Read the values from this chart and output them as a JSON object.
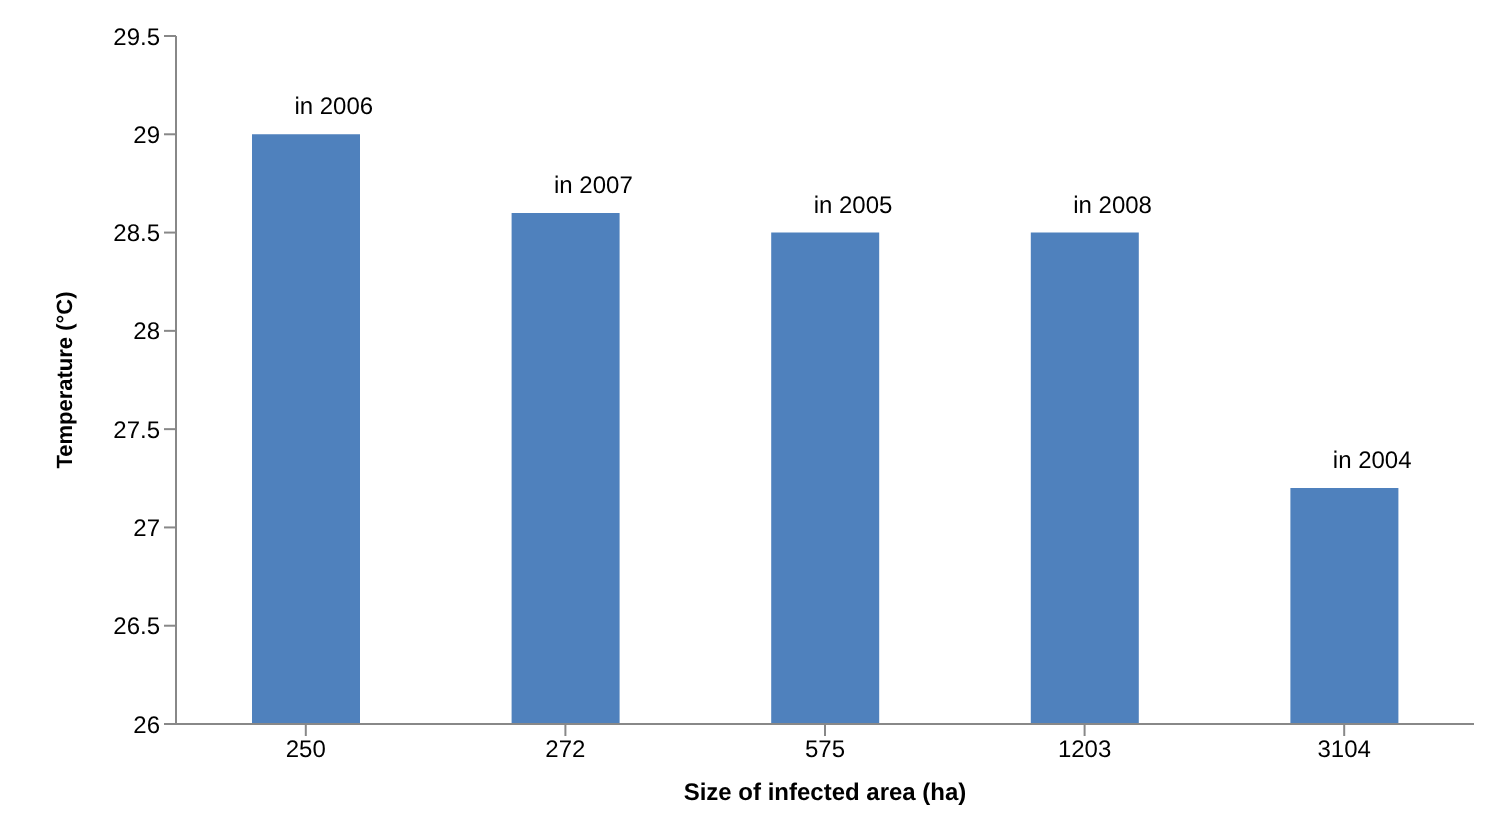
{
  "chart_data": {
    "type": "bar",
    "xlabel": "Size of infected area (ha)",
    "ylabel": "Temperature (°C)",
    "categories": [
      "250",
      "272",
      "575",
      "1203",
      "3104"
    ],
    "values": [
      29,
      28.6,
      28.5,
      28.5,
      27.2
    ],
    "color": "#4f81bd",
    "ylim": [
      26,
      29.5
    ],
    "yticks": [
      26,
      26.5,
      27,
      27.5,
      28,
      28.5,
      29,
      29.5
    ],
    "grid": false,
    "legend": false,
    "annotations": [
      {
        "text": "in 2006",
        "x": "250",
        "y": 29
      },
      {
        "text": "in 2007",
        "x": "272",
        "y": 28.6
      },
      {
        "text": "in 2005",
        "x": "575",
        "y": 28.5
      },
      {
        "text": "in 2008",
        "x": "1203",
        "y": 28.5
      },
      {
        "text": "in 2004",
        "x": "3104",
        "y": 27.2
      }
    ]
  }
}
